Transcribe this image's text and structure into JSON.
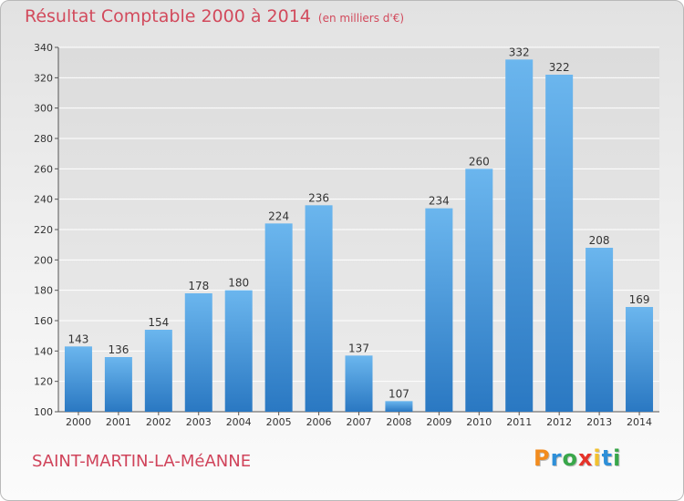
{
  "title": "Résultat Comptable 2000 à 2014",
  "subtitle": "(en milliers d'€)",
  "commune": "SAINT-MARTIN-LA-MéANNE",
  "logo": {
    "text": "Proxiti",
    "letters": [
      {
        "char": "P",
        "color": "#f28c1e"
      },
      {
        "char": "r",
        "color": "#2e8fd8"
      },
      {
        "char": "o",
        "color": "#39a74a"
      },
      {
        "char": "x",
        "color": "#e5332a"
      },
      {
        "char": "i",
        "color": "#f2c12e"
      },
      {
        "char": "t",
        "color": "#2e8fd8"
      },
      {
        "char": "i",
        "color": "#39a74a"
      }
    ]
  },
  "colors": {
    "bar": "#4a9fe0",
    "bar_dark": "#2a78c2",
    "bar_light": "#6bb6ee",
    "title": "#d24a5c",
    "grid": "#ffffff",
    "axis_text": "#333333"
  },
  "chart_data": {
    "type": "bar",
    "categories": [
      "2000",
      "2001",
      "2002",
      "2003",
      "2004",
      "2005",
      "2006",
      "2007",
      "2008",
      "2009",
      "2010",
      "2011",
      "2012",
      "2013",
      "2014"
    ],
    "values": [
      143,
      136,
      154,
      178,
      180,
      224,
      236,
      137,
      107,
      234,
      260,
      332,
      322,
      208,
      169
    ],
    "ylim": [
      100,
      340
    ],
    "yticks": [
      100,
      120,
      140,
      160,
      180,
      200,
      220,
      240,
      260,
      280,
      300,
      320,
      340
    ],
    "grid": true,
    "data_labels": true
  }
}
